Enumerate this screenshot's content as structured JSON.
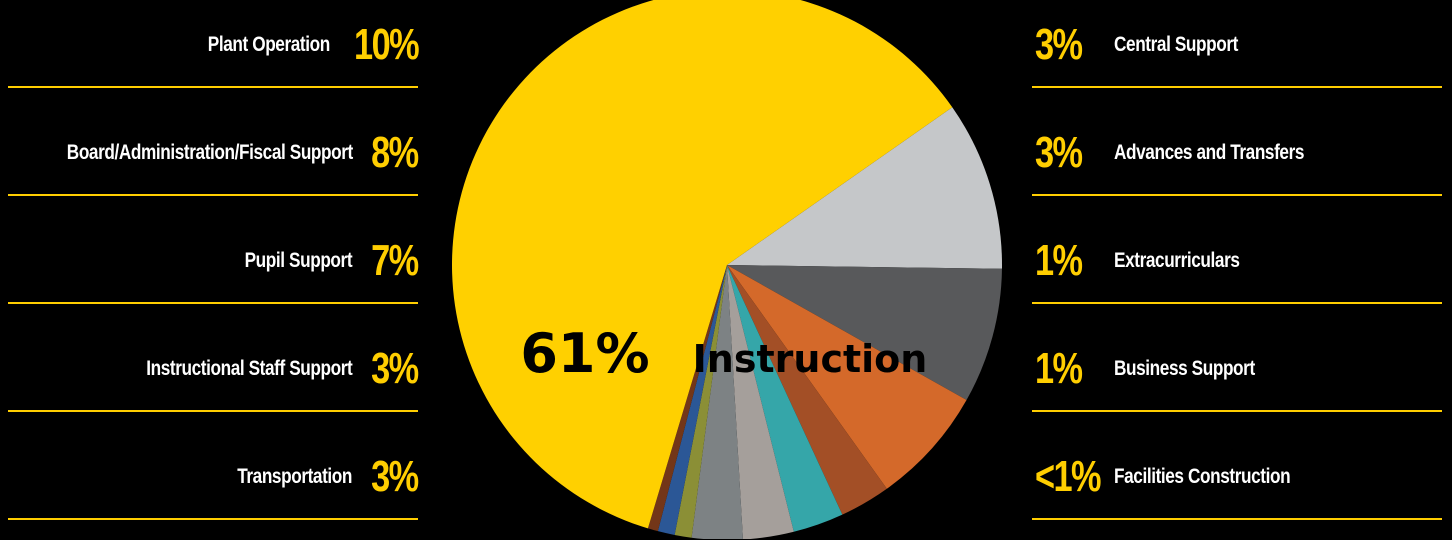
{
  "chart_data": {
    "type": "pie",
    "center_label": {
      "value": "61%",
      "label": "Instruction"
    },
    "slices": [
      {
        "name": "Instruction",
        "value": 61,
        "color": "#ffd000"
      },
      {
        "name": "Plant Operation",
        "value": 10,
        "color": "#c5c7c9"
      },
      {
        "name": "Board/Administration/Fiscal Support",
        "value": 8,
        "color": "#58595b"
      },
      {
        "name": "Pupil Support",
        "value": 7,
        "color": "#d4692a"
      },
      {
        "name": "Instructional Staff Support",
        "value": 3,
        "color": "#a34f26"
      },
      {
        "name": "Transportation",
        "value": 3,
        "color": "#35a6a9"
      },
      {
        "name": "Central Support",
        "value": 3,
        "color": "#a59f9b"
      },
      {
        "name": "Advances and Transfers",
        "value": 3,
        "color": "#7d8284"
      },
      {
        "name": "Extracurriculars",
        "value": 1,
        "color": "#8b8f36"
      },
      {
        "name": "Business Support",
        "value": 1,
        "color": "#2b5796"
      },
      {
        "name": "Facilities Construction",
        "value": 0.6,
        "color": "#733618"
      }
    ]
  },
  "legend": {
    "left": [
      {
        "label": "Plant Operation",
        "pct": "10%"
      },
      {
        "label": "Board/Administration/Fiscal Support",
        "pct": "8%"
      },
      {
        "label": "Pupil Support",
        "pct": "7%"
      },
      {
        "label": "Instructional Staff Support",
        "pct": "3%"
      },
      {
        "label": "Transportation",
        "pct": "3%"
      }
    ],
    "right": [
      {
        "label": "Central Support",
        "pct": "3%"
      },
      {
        "label": "Advances and Transfers",
        "pct": "3%"
      },
      {
        "label": "Extracurriculars",
        "pct": "1%"
      },
      {
        "label": "Business Support",
        "pct": "1%"
      },
      {
        "label": "Facilities Construction",
        "pct": "<1%"
      }
    ]
  },
  "colors": {
    "accent": "#ffce00",
    "background": "#000000",
    "label_text": "#ffffff"
  }
}
